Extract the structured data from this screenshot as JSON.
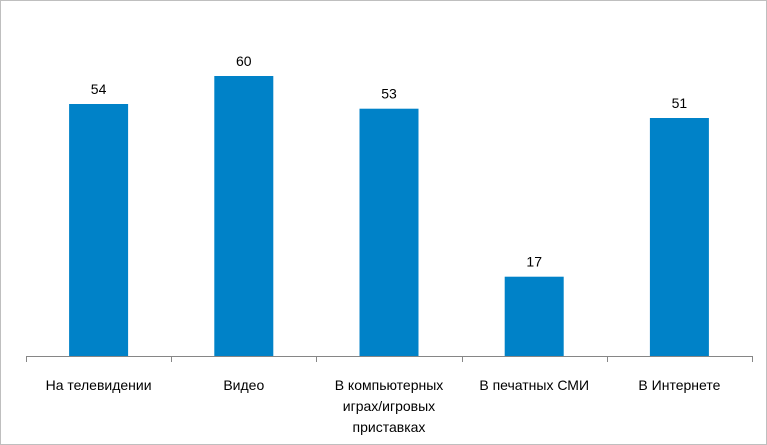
{
  "chart_data": {
    "type": "bar",
    "categories": [
      [
        "На телевидении"
      ],
      [
        "Видео"
      ],
      [
        "В компьютерных",
        "играх/игровых",
        "приставках"
      ],
      [
        "В печатных СМИ"
      ],
      [
        "В Интернете"
      ]
    ],
    "values": [
      54,
      60,
      53,
      17,
      51
    ],
    "title": "",
    "xlabel": "",
    "ylabel": "",
    "ylim": [
      0,
      65
    ],
    "grid": false,
    "legend": "none",
    "show_value_axis": false,
    "data_labels": true,
    "bar_color": "#0082c8",
    "axis_color": "#868686"
  }
}
